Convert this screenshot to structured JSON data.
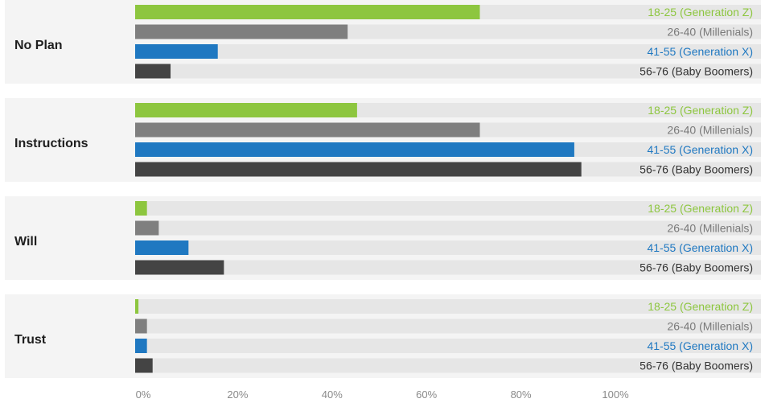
{
  "chart_data": {
    "type": "bar",
    "orientation": "horizontal",
    "categories": [
      "No Plan",
      "Instructions",
      "Will",
      "Trust"
    ],
    "series": [
      {
        "name": "18-25 (Generation Z)",
        "color": "#8dc63f",
        "label_color": "#8dc63f",
        "values": [
          73,
          47,
          2.5,
          0.7
        ]
      },
      {
        "name": "26-40 (Millenials)",
        "color": "#7f7f7f",
        "label_color": "#7a7a7a",
        "values": [
          45,
          73,
          5,
          2.5
        ]
      },
      {
        "name": "41-55 (Generation X)",
        "color": "#1f78c1",
        "label_color": "#1f78c1",
        "values": [
          17.5,
          93,
          11.3,
          2.5
        ]
      },
      {
        "name": "56-76 (Baby Boomers)",
        "color": "#444444",
        "label_color": "#333333",
        "values": [
          7.5,
          94.5,
          18.8,
          3.7
        ]
      }
    ],
    "x_ticks": [
      "0%",
      "20%",
      "40%",
      "60%",
      "80%",
      "100%"
    ],
    "xlim": [
      0,
      100
    ],
    "grid": false,
    "legend": "series names printed at the right end of each bar track",
    "title": "",
    "xlabel": "",
    "ylabel": ""
  }
}
